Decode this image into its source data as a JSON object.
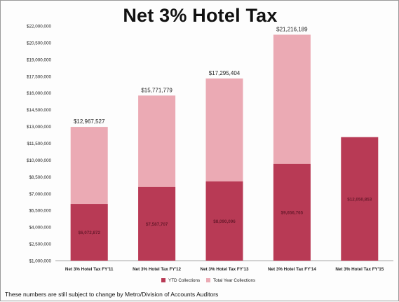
{
  "chart_data": {
    "type": "bar",
    "title": "Net 3% Hotel Tax",
    "categories": [
      "Net 3% Hotel Tax FY'11",
      "Net 3% Hotel Tax FY'12",
      "Net 3% Hotel Tax FY'13",
      "Net 3% Hotel Tax FY'14",
      "Net 3% Hotel Tax FY'15"
    ],
    "series": [
      {
        "name": "YTD Collections",
        "values": [
          6072872,
          7587707,
          8090096,
          9656765,
          12050853
        ]
      },
      {
        "name": "Total Year Collections",
        "values": [
          12967527,
          15771779,
          17295404,
          21216189,
          null
        ]
      }
    ],
    "bar_labels_total": [
      "$12,967,527",
      "$15,771,779",
      "$17,295,404",
      "$21,216,189",
      ""
    ],
    "bar_labels_ytd": [
      "$6,072,872",
      "$7,587,707",
      "$8,090,096",
      "$9,656,765",
      "$12,050,853"
    ],
    "ylim": [
      1000000,
      22000000
    ],
    "yticks": [
      1000000,
      2500000,
      4000000,
      5500000,
      7000000,
      8500000,
      10000000,
      11500000,
      13000000,
      14500000,
      16000000,
      17500000,
      19000000,
      20500000,
      22000000
    ],
    "ytick_labels": [
      "$1,000,000",
      "$2,500,000",
      "$4,000,000",
      "$5,500,000",
      "$7,000,000",
      "$8,500,000",
      "$10,000,000",
      "$11,500,000",
      "$13,000,000",
      "$14,500,000",
      "$16,000,000",
      "$17,500,000",
      "$19,000,000",
      "$20,500,000",
      "$22,000,000"
    ],
    "legend_placement": "bottom",
    "grid": false,
    "colors": {
      "ytd": "#b83a55",
      "total": "#ebaab4",
      "text": "#222222",
      "axis": "#8a8a8a"
    }
  },
  "footnote": "These numbers are still subject to change by Metro/Division of Accounts Auditors"
}
